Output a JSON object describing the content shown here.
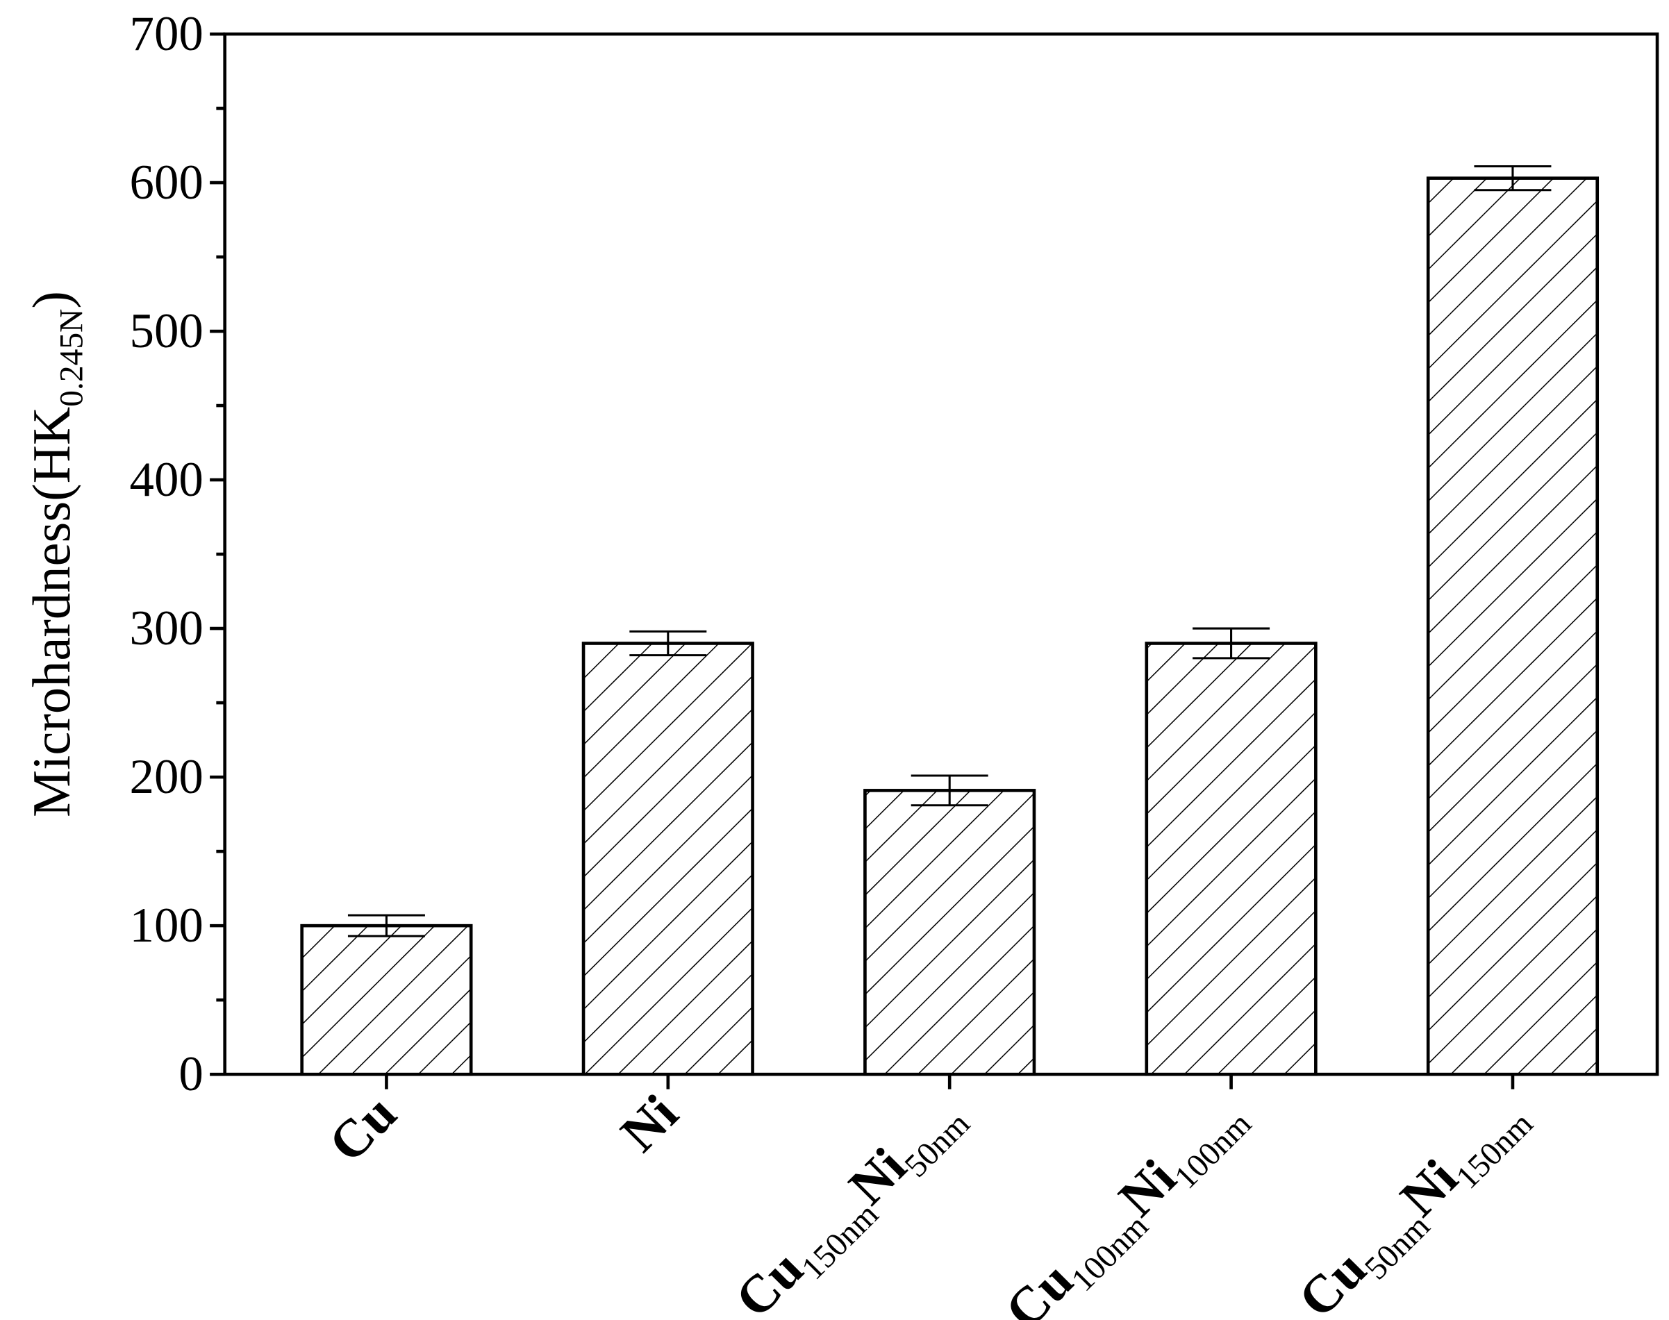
{
  "chart_data": {
    "type": "bar",
    "y_label": "Microhardness(HK0.245N)",
    "categories": [
      "Cu",
      "Ni",
      "Cu150nmNi50nm",
      "Cu100nmNi100nm",
      "Cu50nmNi150nm"
    ],
    "values": [
      100,
      290,
      191,
      290,
      603
    ],
    "errors": [
      7,
      8,
      10,
      10,
      8
    ],
    "color": "#000000",
    "hatch": true,
    "ylim": [
      0,
      700
    ],
    "yticks": [
      0,
      100,
      200,
      300,
      400,
      500,
      600,
      700
    ]
  }
}
